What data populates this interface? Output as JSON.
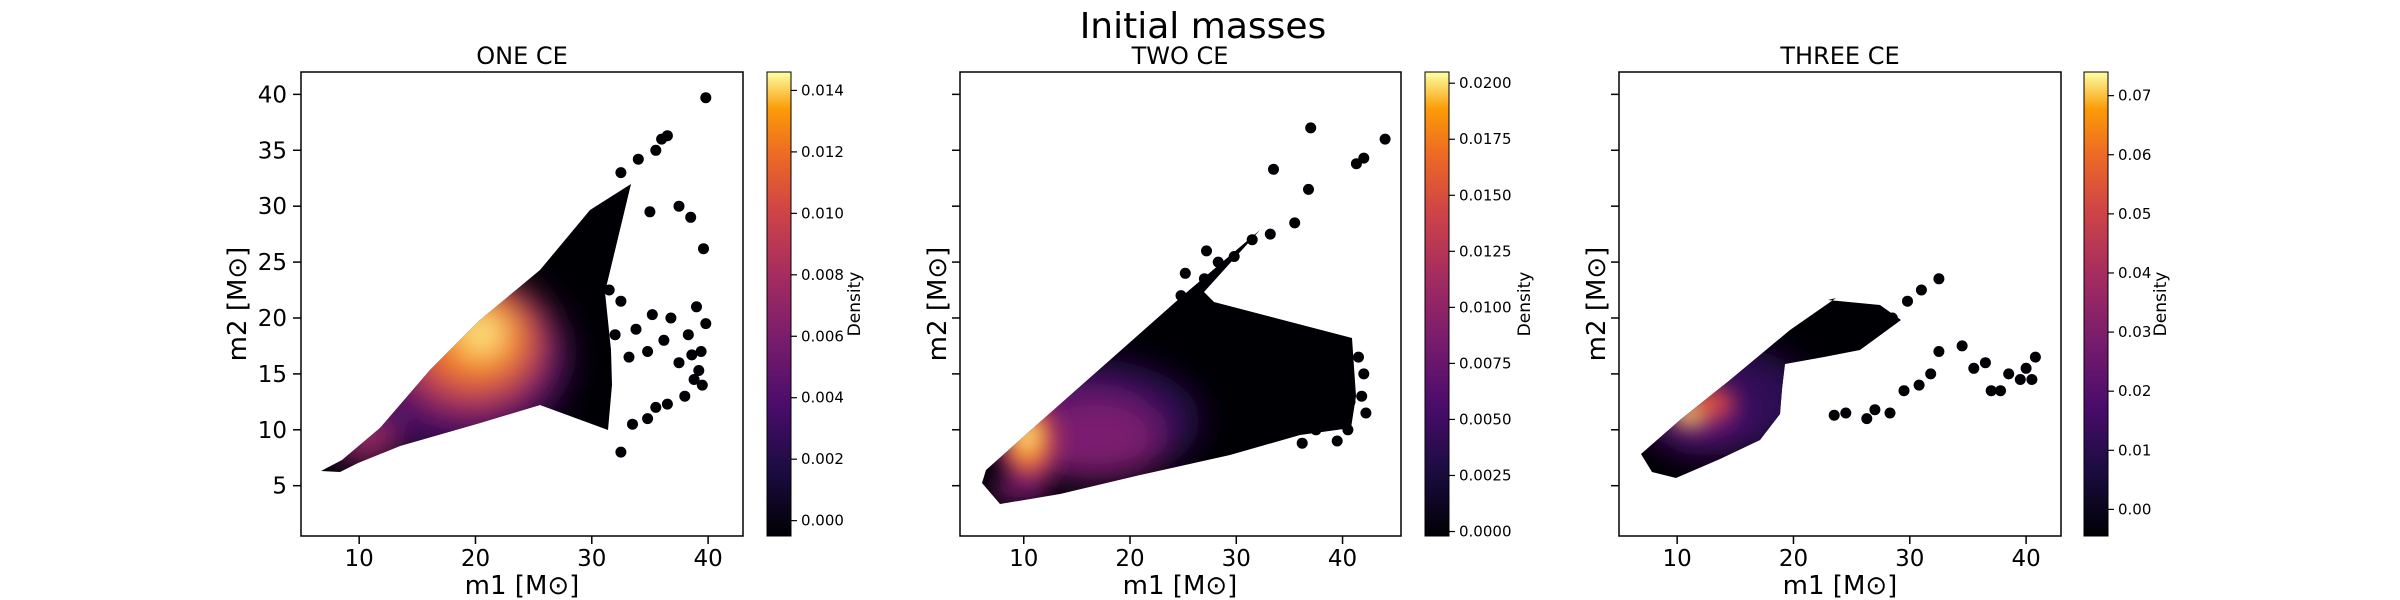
{
  "figure": {
    "suptitle": "Initial masses"
  },
  "chart_data": [
    {
      "type": "scatter",
      "title": "ONE CE",
      "xlabel": "m1  [M⊙]",
      "ylabel": "m2  [M⊙]",
      "xlim": [
        5,
        43
      ],
      "ylim": [
        0.5,
        42
      ],
      "xticks": [
        10,
        20,
        30,
        40
      ],
      "yticks": [
        5,
        10,
        15,
        20,
        25,
        30,
        35,
        40
      ],
      "colorbar": {
        "label": "Density",
        "range": [
          -0.0005,
          0.0146
        ],
        "ticks": [
          0.0,
          0.002,
          0.004,
          0.006,
          0.008,
          0.01,
          0.012,
          0.014
        ],
        "decimals": 3
      },
      "density_peaks": [
        {
          "x": 17.5,
          "y": 16.5,
          "value": 0.0146
        },
        {
          "x": 10,
          "y": 9,
          "value": 0.006
        }
      ],
      "outliers": [
        [
          39.8,
          39.7
        ],
        [
          39.6,
          26.2
        ],
        [
          36.5,
          36.3
        ],
        [
          36.0,
          36.0
        ],
        [
          35.5,
          35.0
        ],
        [
          34.0,
          34.2
        ],
        [
          32.5,
          33.0
        ],
        [
          37.5,
          30.0
        ],
        [
          38.5,
          29.0
        ],
        [
          35.0,
          29.5
        ],
        [
          39.0,
          21.0
        ],
        [
          39.8,
          19.5
        ],
        [
          38.3,
          18.5
        ],
        [
          39.4,
          17.0
        ],
        [
          36.8,
          20.0
        ],
        [
          37.5,
          16.0
        ],
        [
          39.5,
          14.0
        ],
        [
          38.8,
          14.5
        ],
        [
          38.0,
          13.0
        ],
        [
          36.5,
          12.3
        ],
        [
          35.5,
          12.0
        ],
        [
          34.8,
          11.0
        ],
        [
          33.5,
          10.5
        ],
        [
          32.5,
          8.0
        ],
        [
          31.5,
          22.5
        ],
        [
          30.5,
          24.5
        ],
        [
          32.5,
          21.5
        ],
        [
          33.8,
          19.0
        ],
        [
          35.2,
          20.3
        ],
        [
          36.2,
          18.0
        ],
        [
          34.8,
          17.0
        ],
        [
          33.2,
          16.5
        ],
        [
          32.0,
          18.5
        ],
        [
          30.5,
          21.0
        ],
        [
          31.0,
          13.0
        ],
        [
          30.2,
          11.5
        ],
        [
          38.6,
          16.7
        ],
        [
          39.2,
          15.3
        ]
      ]
    },
    {
      "type": "scatter",
      "title": "TWO CE",
      "xlabel": "m1  [M⊙]",
      "ylabel": "m2  [M⊙]",
      "xlim": [
        4,
        45.5
      ],
      "ylim": [
        0.5,
        42
      ],
      "xticks": [
        10,
        20,
        30,
        40
      ],
      "yticks": [
        5,
        10,
        15,
        20,
        25,
        30,
        35,
        40
      ],
      "colorbar": {
        "label": "Density",
        "range": [
          -0.0002,
          0.0205
        ],
        "ticks": [
          0.0,
          0.0025,
          0.005,
          0.0075,
          0.01,
          0.0125,
          0.015,
          0.0175,
          0.02
        ],
        "decimals": 4
      },
      "density_peaks": [
        {
          "x": 10.5,
          "y": 9.5,
          "value": 0.0205
        },
        {
          "x": 16,
          "y": 9.5,
          "value": 0.006
        }
      ],
      "outliers": [
        [
          44.0,
          36.0
        ],
        [
          42.0,
          34.3
        ],
        [
          41.3,
          33.8
        ],
        [
          37.0,
          37.0
        ],
        [
          36.8,
          31.5
        ],
        [
          33.5,
          33.3
        ],
        [
          35.5,
          28.5
        ],
        [
          33.2,
          27.5
        ],
        [
          31.5,
          27.0
        ],
        [
          29.8,
          25.5
        ],
        [
          28.3,
          25.0
        ],
        [
          27.2,
          26.0
        ],
        [
          25.2,
          24.0
        ],
        [
          27.0,
          23.5
        ],
        [
          24.8,
          22.0
        ],
        [
          25.5,
          21.0
        ],
        [
          41.5,
          16.5
        ],
        [
          42.0,
          15.0
        ],
        [
          41.8,
          13.0
        ],
        [
          42.2,
          11.5
        ],
        [
          40.7,
          12.5
        ],
        [
          40.5,
          10.0
        ],
        [
          39.5,
          9.0
        ],
        [
          37.5,
          10.0
        ],
        [
          36.2,
          8.8
        ]
      ]
    },
    {
      "type": "scatter",
      "title": "THREE CE",
      "xlabel": "m1  [M⊙]",
      "ylabel": "m2  [M⊙]",
      "xlim": [
        5,
        43
      ],
      "ylim": [
        0.5,
        42
      ],
      "xticks": [
        10,
        20,
        30,
        40
      ],
      "yticks": [
        5,
        10,
        15,
        20,
        25,
        30,
        35,
        40
      ],
      "colorbar": {
        "label": "Density",
        "range": [
          -0.0045,
          0.074
        ],
        "ticks": [
          0.0,
          0.01,
          0.02,
          0.03,
          0.04,
          0.05,
          0.06,
          0.07
        ],
        "decimals": 2
      },
      "density_peaks": [
        {
          "x": 11,
          "y": 11,
          "value": 0.074
        },
        {
          "x": 13,
          "y": 12,
          "value": 0.03
        }
      ],
      "outliers": [
        [
          32.5,
          23.5
        ],
        [
          31.0,
          22.5
        ],
        [
          29.8,
          21.5
        ],
        [
          28.5,
          20.0
        ],
        [
          27.0,
          19.5
        ],
        [
          25.8,
          18.0
        ],
        [
          40.8,
          16.5
        ],
        [
          40.0,
          15.5
        ],
        [
          39.5,
          14.5
        ],
        [
          40.5,
          14.5
        ],
        [
          38.5,
          15.0
        ],
        [
          37.8,
          13.5
        ],
        [
          37.0,
          13.5
        ],
        [
          36.5,
          16.0
        ],
        [
          35.5,
          15.5
        ],
        [
          34.5,
          17.5
        ],
        [
          32.5,
          17.0
        ],
        [
          31.8,
          15.0
        ],
        [
          30.8,
          14.0
        ],
        [
          29.5,
          13.5
        ],
        [
          28.3,
          11.5
        ],
        [
          27.0,
          11.8
        ],
        [
          26.3,
          11.0
        ],
        [
          24.5,
          11.5
        ],
        [
          23.5,
          11.3
        ]
      ]
    }
  ]
}
